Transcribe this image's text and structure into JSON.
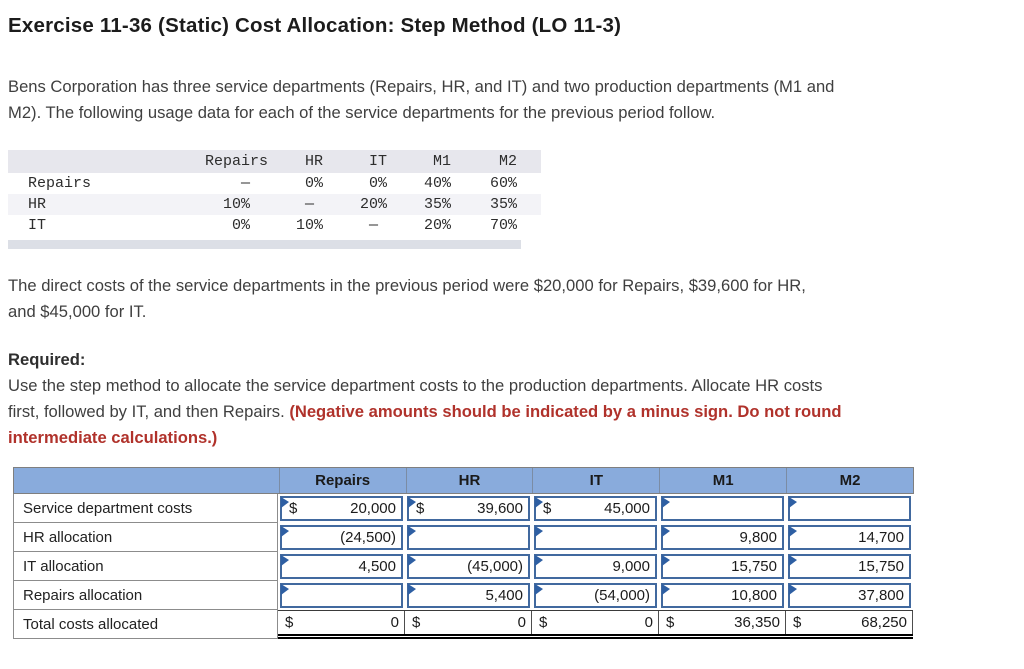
{
  "title": "Exercise 11-36 (Static) Cost Allocation: Step Method (LO 11-3)",
  "intro": {
    "line1": "Bens Corporation has three service departments (Repairs, HR, and IT) and two production departments (M1 and",
    "line2": "M2). The following usage data for each of the service departments for the previous period follow."
  },
  "usage_table": {
    "headers": [
      "Repairs",
      "HR",
      "IT",
      "M1",
      "M2"
    ],
    "rows": [
      {
        "label": "Repairs",
        "cells": [
          "—",
          "0%",
          "0%",
          "40%",
          "60%"
        ]
      },
      {
        "label": "HR",
        "cells": [
          "10%",
          "— ",
          "20%",
          "35%",
          "35%"
        ]
      },
      {
        "label": "IT",
        "cells": [
          "0%",
          "10%",
          "— ",
          "20%",
          "70%"
        ]
      }
    ]
  },
  "direct_costs": {
    "line1": "The direct costs of the service departments in the previous period were $20,000 for Repairs, $39,600 for HR,",
    "line2": "and $45,000 for IT."
  },
  "required": {
    "heading": "Required:",
    "line1": "Use the step method to allocate the service department costs to the production departments. Allocate HR costs",
    "line2_normal": "first, followed by IT, and then Repairs. ",
    "line2_red": "(Negative amounts should be indicated by a minus sign. Do not round",
    "line3_red": "intermediate calculations.)"
  },
  "answer_table": {
    "dollar_sign": "$",
    "columns": [
      "Repairs",
      "HR",
      "IT",
      "M1",
      "M2"
    ],
    "rows": [
      {
        "label": "Service department costs",
        "cells": [
          {
            "d": "$",
            "v": "20,000"
          },
          {
            "d": "$",
            "v": "39,600"
          },
          {
            "d": "$",
            "v": "45,000"
          },
          {
            "v": ""
          },
          {
            "v": ""
          }
        ]
      },
      {
        "label": "HR allocation",
        "cells": [
          {
            "v": "(24,500)"
          },
          {
            "v": ""
          },
          {
            "v": ""
          },
          {
            "v": "9,800"
          },
          {
            "v": "14,700"
          }
        ]
      },
      {
        "label": "IT allocation",
        "cells": [
          {
            "v": "4,500"
          },
          {
            "v": "(45,000)"
          },
          {
            "v": "9,000"
          },
          {
            "v": "15,750"
          },
          {
            "v": "15,750"
          }
        ]
      },
      {
        "label": "Repairs allocation",
        "cells": [
          {
            "v": ""
          },
          {
            "v": "5,400"
          },
          {
            "v": "(54,000)"
          },
          {
            "v": "10,800"
          },
          {
            "v": "37,800"
          }
        ]
      },
      {
        "label": "Total costs allocated",
        "cells": [
          {
            "d": "$",
            "v": "0"
          },
          {
            "d": "$",
            "v": "0"
          },
          {
            "d": "$",
            "v": "0"
          },
          {
            "d": "$",
            "v": "36,350"
          },
          {
            "d": "$",
            "v": "68,250"
          }
        ]
      }
    ]
  }
}
